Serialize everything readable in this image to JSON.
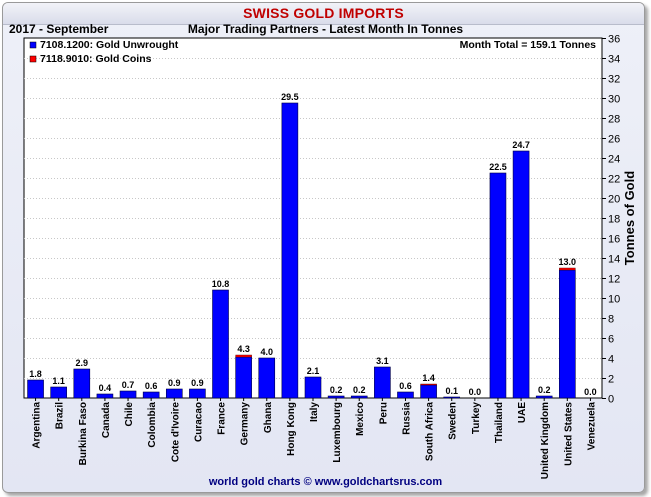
{
  "header": {
    "title": "SWISS GOLD IMPORTS",
    "period": "2017 - September",
    "subtitle": "Major Trading Partners - Latest Month In Tonnes"
  },
  "footer": {
    "credit": "world gold charts © www.goldchartsrus.com"
  },
  "colors": {
    "unwrought": "#0000ff",
    "coins": "#ff0000",
    "title": "#c00000"
  },
  "chart_data": {
    "type": "bar",
    "stacked": true,
    "title": "SWISS GOLD IMPORTS",
    "subtitle": "Major Trading Partners - Latest Month In Tonnes",
    "ylabel": "Tonnes of Gold",
    "ylim": [
      0,
      36
    ],
    "yticks": [
      0,
      2,
      4,
      6,
      8,
      10,
      12,
      14,
      16,
      18,
      20,
      22,
      24,
      26,
      28,
      30,
      32,
      34,
      36
    ],
    "grid": true,
    "annotation": "Month Total = 159.1 Tonnes",
    "legend_position": "top-left",
    "categories": [
      "Argentina",
      "Brazil",
      "Burkina Faso",
      "Canada",
      "Chile",
      "Colombia",
      "Cote d'Ivoire",
      "Curacao",
      "France",
      "Germany",
      "Ghana",
      "Hong Kong",
      "Italy",
      "Luxembourg",
      "Mexico",
      "Peru",
      "Russia",
      "South Africa",
      "Sweden",
      "Turkey",
      "Thailand",
      "UAE",
      "United Kingdom",
      "United States",
      "Venezuela"
    ],
    "labels": [
      "1.8",
      "1.1",
      "2.9",
      "0.4",
      "0.7",
      "0.6",
      "0.9",
      "0.9",
      "10.8",
      "4.3",
      "4.0",
      "29.5",
      "2.1",
      "0.2",
      "0.2",
      "3.1",
      "0.6",
      "1.4",
      "0.1",
      "0.0",
      "22.5",
      "24.7",
      "0.2",
      "13.0",
      "0.0"
    ],
    "series": [
      {
        "name": "7108.1200: Gold Unwrought",
        "color": "#0000ff",
        "values": [
          1.8,
          1.1,
          2.9,
          0.4,
          0.7,
          0.6,
          0.9,
          0.9,
          10.8,
          4.1,
          4.0,
          29.5,
          2.1,
          0.2,
          0.2,
          3.1,
          0.6,
          1.3,
          0.1,
          0.0,
          22.5,
          24.7,
          0.2,
          12.8,
          0.0
        ]
      },
      {
        "name": "7118.9010: Gold Coins",
        "color": "#ff0000",
        "values": [
          0,
          0,
          0,
          0,
          0,
          0,
          0,
          0,
          0,
          0.2,
          0,
          0,
          0,
          0,
          0,
          0,
          0,
          0.1,
          0,
          0,
          0,
          0,
          0,
          0.2,
          0
        ]
      }
    ]
  }
}
